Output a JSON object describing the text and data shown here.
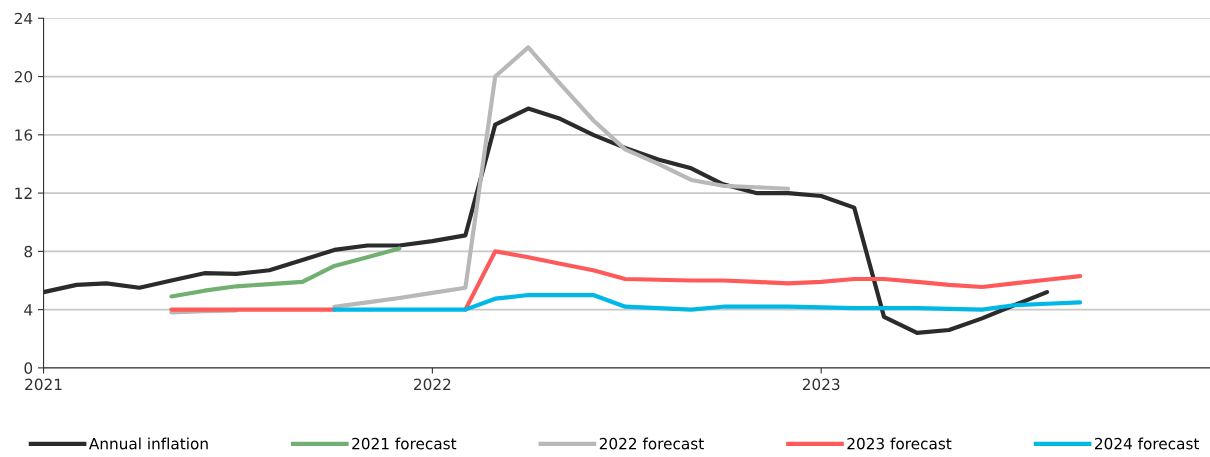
{
  "chart_data": {
    "type": "line",
    "x": [
      "2021-01",
      "2021-02",
      "2021-03",
      "2021-04",
      "2021-05",
      "2021-06",
      "2021-07",
      "2021-08",
      "2021-09",
      "2021-10",
      "2021-11",
      "2021-12",
      "2022-01",
      "2022-02",
      "2022-03",
      "2022-04",
      "2022-05",
      "2022-06",
      "2022-07",
      "2022-08",
      "2022-09",
      "2022-10",
      "2022-11",
      "2022-12",
      "2023-01",
      "2023-02",
      "2023-03",
      "2023-04",
      "2023-05",
      "2023-06",
      "2023-07",
      "2023-08",
      "2023-09"
    ],
    "xlim": [
      "2021-01",
      "2024-01"
    ],
    "xticks": [
      "2021",
      "2022",
      "2023"
    ],
    "ylim": [
      0,
      24
    ],
    "yticks": [
      0,
      4,
      8,
      12,
      16,
      20,
      24
    ],
    "grid": "y",
    "legend": "bottom",
    "line_style": "solid",
    "marker": "none",
    "series": [
      {
        "name": "Annual inflation",
        "color": "#2b2b2b",
        "values": [
          5.2,
          5.7,
          5.8,
          5.5,
          6.0,
          6.5,
          6.45,
          6.7,
          7.4,
          8.1,
          8.4,
          8.4,
          8.7,
          9.1,
          16.7,
          17.8,
          17.1,
          16.0,
          15.1,
          14.3,
          13.7,
          12.6,
          12.0,
          12.0,
          11.8,
          11.0,
          3.5,
          2.4,
          2.6,
          3.4,
          4.3,
          5.2,
          null
        ]
      },
      {
        "name": "2021 forecast",
        "color": "#72b071",
        "values": [
          null,
          null,
          null,
          null,
          4.9,
          5.3,
          5.6,
          5.75,
          5.9,
          7.0,
          7.6,
          8.2,
          null,
          null,
          null,
          null,
          null,
          null,
          null,
          null,
          null,
          null,
          null,
          null,
          null,
          null,
          null,
          null,
          null,
          null,
          null,
          null,
          null
        ]
      },
      {
        "name": "2022 forecast",
        "color": "#b8b8b8",
        "values": [
          null,
          null,
          null,
          null,
          3.8,
          3.9,
          3.95,
          null,
          null,
          4.2,
          4.5,
          4.8,
          5.15,
          5.5,
          20.0,
          22.0,
          19.5,
          17.0,
          15.0,
          14.0,
          12.9,
          12.5,
          12.4,
          12.3,
          null,
          null,
          null,
          null,
          null,
          null,
          null,
          null,
          null
        ]
      },
      {
        "name": "2023 forecast",
        "color": "#ff5a5a",
        "values": [
          null,
          null,
          null,
          null,
          4.0,
          4.0,
          4.0,
          4.0,
          4.0,
          4.0,
          null,
          null,
          null,
          4.0,
          8.0,
          7.6,
          7.15,
          6.7,
          6.1,
          6.05,
          6.0,
          6.0,
          5.9,
          5.8,
          5.9,
          6.1,
          6.1,
          5.9,
          5.7,
          5.55,
          5.8,
          6.05,
          6.3
        ]
      },
      {
        "name": "2024 forecast",
        "color": "#00b8e6",
        "values": [
          null,
          null,
          null,
          null,
          null,
          null,
          null,
          null,
          null,
          4.0,
          4.0,
          4.0,
          4.0,
          4.0,
          4.75,
          5.0,
          5.0,
          5.0,
          4.2,
          4.1,
          4.0,
          4.2,
          4.2,
          4.2,
          4.15,
          4.1,
          4.1,
          4.1,
          4.05,
          4.0,
          4.3,
          4.4,
          4.5
        ]
      }
    ]
  }
}
